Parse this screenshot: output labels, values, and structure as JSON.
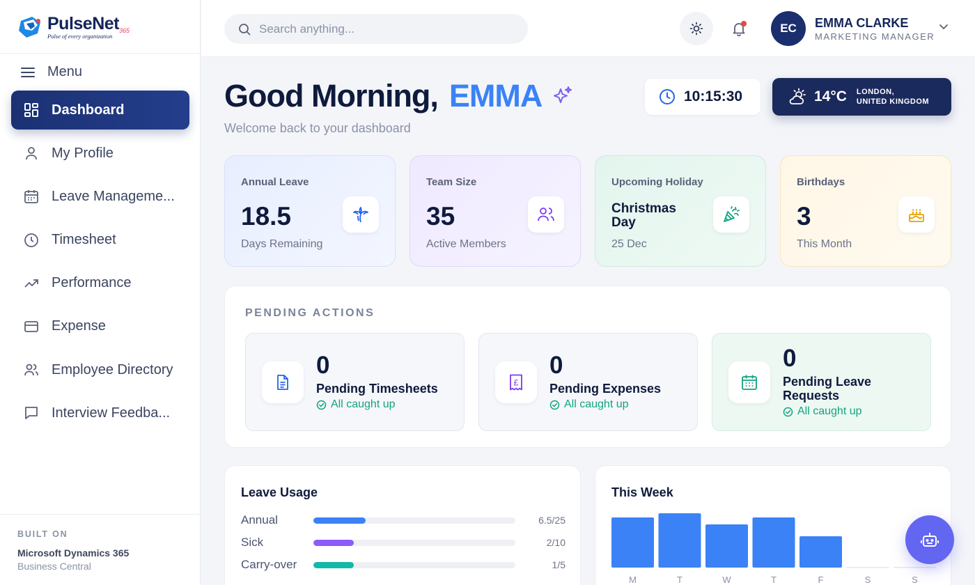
{
  "logo": {
    "name": "PulseNet",
    "suffix": "365",
    "tagline": "Pulse of every organization"
  },
  "menu": {
    "label": "Menu"
  },
  "sidebar": {
    "items": [
      {
        "label": "Dashboard",
        "icon": "dashboard-icon",
        "active": true
      },
      {
        "label": "My Profile",
        "icon": "user-icon"
      },
      {
        "label": "Leave Manageme...",
        "icon": "calendar-icon"
      },
      {
        "label": "Timesheet",
        "icon": "clock-icon"
      },
      {
        "label": "Performance",
        "icon": "trending-up-icon"
      },
      {
        "label": "Expense",
        "icon": "credit-card-icon"
      },
      {
        "label": "Employee Directory",
        "icon": "users-icon"
      },
      {
        "label": "Interview Feedba...",
        "icon": "message-icon"
      }
    ],
    "built_on": {
      "label": "BUILT ON",
      "product": "Microsoft Dynamics 365",
      "edition": "Business Central"
    }
  },
  "topbar": {
    "search_placeholder": "Search anything...",
    "user": {
      "initials": "EC",
      "name": "EMMA CLARKE",
      "role": "MARKETING MANAGER"
    }
  },
  "greeting": {
    "prefix": "Good Morning,",
    "name": "EMMA",
    "subtitle": "Welcome back to your dashboard",
    "time": "10:15:30",
    "weather": {
      "temp": "14°C",
      "city": "LONDON,",
      "country": "UNITED KINGDOM"
    }
  },
  "stats": [
    {
      "label": "Annual Leave",
      "value": "18.5",
      "sub": "Days Remaining",
      "icon": "palm-tree-icon"
    },
    {
      "label": "Team Size",
      "value": "35",
      "sub": "Active Members",
      "icon": "team-icon"
    },
    {
      "label": "Upcoming Holiday",
      "value": "Christmas Day",
      "sub": "25 Dec",
      "icon": "party-popper-icon"
    },
    {
      "label": "Birthdays",
      "value": "3",
      "sub": "This Month",
      "icon": "cake-icon"
    }
  ],
  "pending": {
    "title": "PENDING ACTIONS",
    "cards": [
      {
        "count": "0",
        "title": "Pending Timesheets",
        "status": "All caught up",
        "icon": "document-icon"
      },
      {
        "count": "0",
        "title": "Pending Expenses",
        "status": "All caught up",
        "icon": "receipt-pound-icon"
      },
      {
        "count": "0",
        "title": "Pending Leave Requests",
        "status": "All caught up",
        "icon": "calendar-check-icon"
      }
    ]
  },
  "leave_usage": {
    "title": "Leave Usage",
    "rows": [
      {
        "label": "Annual",
        "used": 6.5,
        "total": 25,
        "text": "6.5/25",
        "color": "#3b82f6"
      },
      {
        "label": "Sick",
        "used": 2,
        "total": 10,
        "text": "2/10",
        "color": "#8b5cf6"
      },
      {
        "label": "Carry-over",
        "used": 1,
        "total": 5,
        "text": "1/5",
        "color": "#14b8a6"
      }
    ]
  },
  "chart_data": {
    "type": "bar",
    "title": "This Week",
    "categories": [
      "M",
      "T",
      "W",
      "T",
      "F",
      "S",
      "S"
    ],
    "values": [
      7.2,
      7.8,
      6.2,
      7.2,
      4.5,
      0,
      0
    ],
    "color": "#3b82f6"
  },
  "colors": {
    "primary": "#1b3173",
    "accent": "#3b82f6",
    "success": "#10a37f",
    "fab": "#6366f1"
  },
  "fab": {
    "icon": "robot-icon"
  }
}
